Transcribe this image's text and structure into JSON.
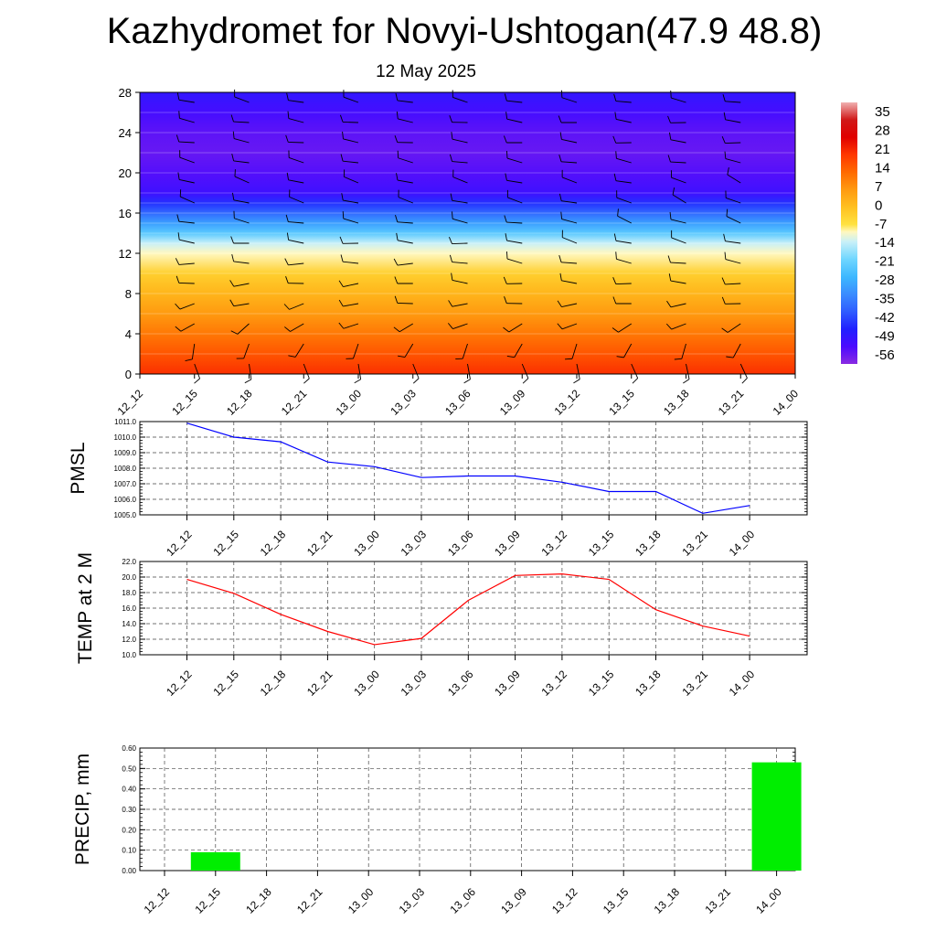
{
  "title": "Kazhydromet for Novyi-Ushtogan(47.9 48.8)",
  "subtitle": "12 May 2025",
  "time_labels": [
    "12_12",
    "12_15",
    "12_18",
    "12_21",
    "13_00",
    "13_03",
    "13_06",
    "13_09",
    "13_12",
    "13_15",
    "13_18",
    "13_21",
    "14_00"
  ],
  "chart_data": [
    {
      "type": "heatmap",
      "name": "temperature-wind-cross-section",
      "x": [
        "12_12",
        "12_15",
        "12_18",
        "12_21",
        "13_00",
        "13_03",
        "13_06",
        "13_09",
        "13_12",
        "13_15",
        "13_18",
        "13_21",
        "14_00"
      ],
      "ylim": [
        0,
        28
      ],
      "yticks": [
        0,
        4,
        8,
        12,
        16,
        20,
        24,
        28
      ],
      "colorbar": {
        "labels": [
          "35",
          "28",
          "21",
          "14",
          "7",
          "0",
          "-7",
          "-14",
          "-21",
          "-28",
          "-35",
          "-42",
          "-49",
          "-56"
        ],
        "range": [
          -63,
          42
        ]
      },
      "temperature_by_height": [
        {
          "y": 0,
          "value": 22
        },
        {
          "y": 2,
          "value": 17
        },
        {
          "y": 4,
          "value": 12
        },
        {
          "y": 6,
          "value": 7
        },
        {
          "y": 8,
          "value": 2
        },
        {
          "y": 10,
          "value": -3
        },
        {
          "y": 12,
          "value": -10
        },
        {
          "y": 13,
          "value": -14
        },
        {
          "y": 14,
          "value": -24
        },
        {
          "y": 15,
          "value": -32
        },
        {
          "y": 16,
          "value": -40
        },
        {
          "y": 17,
          "value": -47
        },
        {
          "y": 18,
          "value": -54
        },
        {
          "y": 20,
          "value": -57
        },
        {
          "y": 22,
          "value": -59
        },
        {
          "y": 24,
          "value": -58
        },
        {
          "y": 26,
          "value": -55
        },
        {
          "y": 28,
          "value": -52
        }
      ],
      "wind_barbs": {
        "levels": [
          1,
          3,
          5,
          7,
          9,
          11,
          13,
          15,
          17,
          19,
          21,
          23,
          25,
          27
        ],
        "direction_deg_by_level": [
          160,
          200,
          240,
          260,
          270,
          275,
          280,
          285,
          290,
          290,
          285,
          280,
          280,
          285
        ]
      },
      "grid": false
    },
    {
      "type": "line",
      "ylabel": "PMSL",
      "x": [
        "12_12",
        "12_15",
        "12_18",
        "12_21",
        "13_00",
        "13_03",
        "13_06",
        "13_09",
        "13_12",
        "13_15",
        "13_18",
        "13_21",
        "14_00"
      ],
      "series": [
        {
          "values": [
            1010.9,
            1010.0,
            1009.7,
            1008.4,
            1008.1,
            1007.4,
            1007.5,
            1007.5,
            1007.1,
            1006.5,
            1006.5,
            1005.1,
            1005.6
          ]
        }
      ],
      "ylim": [
        1005.0,
        1011.0
      ],
      "ytick_labels": [
        "1005.0",
        "1006.0",
        "1007.0",
        "1008.0",
        "1009.0",
        "1010.0",
        "1011.0"
      ],
      "line_color": "#0000ff",
      "grid": true
    },
    {
      "type": "line",
      "ylabel": "TEMP at 2 M",
      "x": [
        "12_12",
        "12_15",
        "12_18",
        "12_21",
        "13_00",
        "13_03",
        "13_06",
        "13_09",
        "13_12",
        "13_15",
        "13_18",
        "13_21",
        "14_00"
      ],
      "series": [
        {
          "values": [
            19.7,
            17.9,
            15.2,
            13.0,
            11.3,
            12.1,
            17.0,
            20.2,
            20.4,
            19.7,
            15.8,
            13.7,
            12.4
          ]
        }
      ],
      "ylim": [
        10.0,
        22.0
      ],
      "ytick_labels": [
        "10.0",
        "12.0",
        "14.0",
        "16.0",
        "18.0",
        "20.0",
        "22.0"
      ],
      "line_color": "#ff0000",
      "grid": true
    },
    {
      "type": "bar",
      "ylabel": "PRECIP, mm",
      "categories": [
        "12_12",
        "12_15",
        "12_18",
        "12_21",
        "13_00",
        "13_03",
        "13_06",
        "13_09",
        "13_12",
        "13_15",
        "13_18",
        "13_21",
        "14_00"
      ],
      "values": [
        0,
        0.09,
        0,
        0,
        0,
        0,
        0,
        0,
        0,
        0,
        0,
        0,
        0.53
      ],
      "ylim": [
        0,
        0.6
      ],
      "ytick_labels": [
        "0.00",
        "0.10",
        "0.20",
        "0.30",
        "0.40",
        "0.50",
        "0.60"
      ],
      "bar_color": "#00ee00",
      "grid": true
    }
  ]
}
